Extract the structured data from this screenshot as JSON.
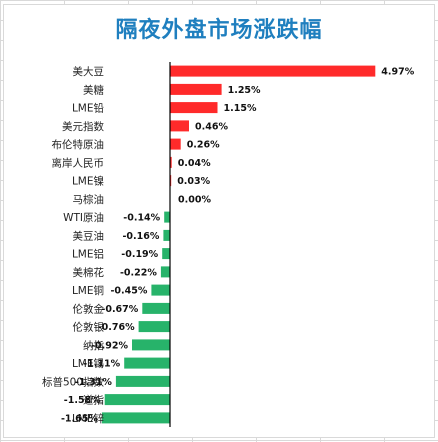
{
  "chart_data": {
    "type": "bar",
    "orientation": "horizontal",
    "title": "隔夜外盘市场涨跌幅",
    "categories": [
      "美大豆",
      "美糖",
      "LME铅",
      "美元指数",
      "布伦特原油",
      "离岸人民币",
      "LME镍",
      "马棕油",
      "WTI原油",
      "美豆油",
      "LME铝",
      "美棉花",
      "LME铜",
      "伦敦金",
      "伦敦银",
      "纳指",
      "LME锡",
      "标普500指数",
      "道指",
      "LME锌"
    ],
    "values": [
      4.97,
      1.25,
      1.15,
      0.46,
      0.26,
      0.04,
      0.03,
      0.0,
      -0.14,
      -0.16,
      -0.19,
      -0.22,
      -0.45,
      -0.67,
      -0.76,
      -0.92,
      -1.11,
      -1.31,
      -1.58,
      -1.65
    ],
    "value_labels": [
      "4.97%",
      "1.25%",
      "1.15%",
      "0.46%",
      "0.26%",
      "0.04%",
      "0.03%",
      "0.00%",
      "-0.14%",
      "-0.16%",
      "-0.19%",
      "-0.22%",
      "-0.45%",
      "-0.67%",
      "-0.76%",
      "-0.92%",
      "-1.11%",
      "-1.31%",
      "-1.58%",
      "-1.65%"
    ],
    "colors": {
      "positive": "#ff2a2a",
      "negative": "#27b36a",
      "title": "#1f7fbf",
      "axis": "#000000"
    },
    "grid": false,
    "legend": "none"
  }
}
